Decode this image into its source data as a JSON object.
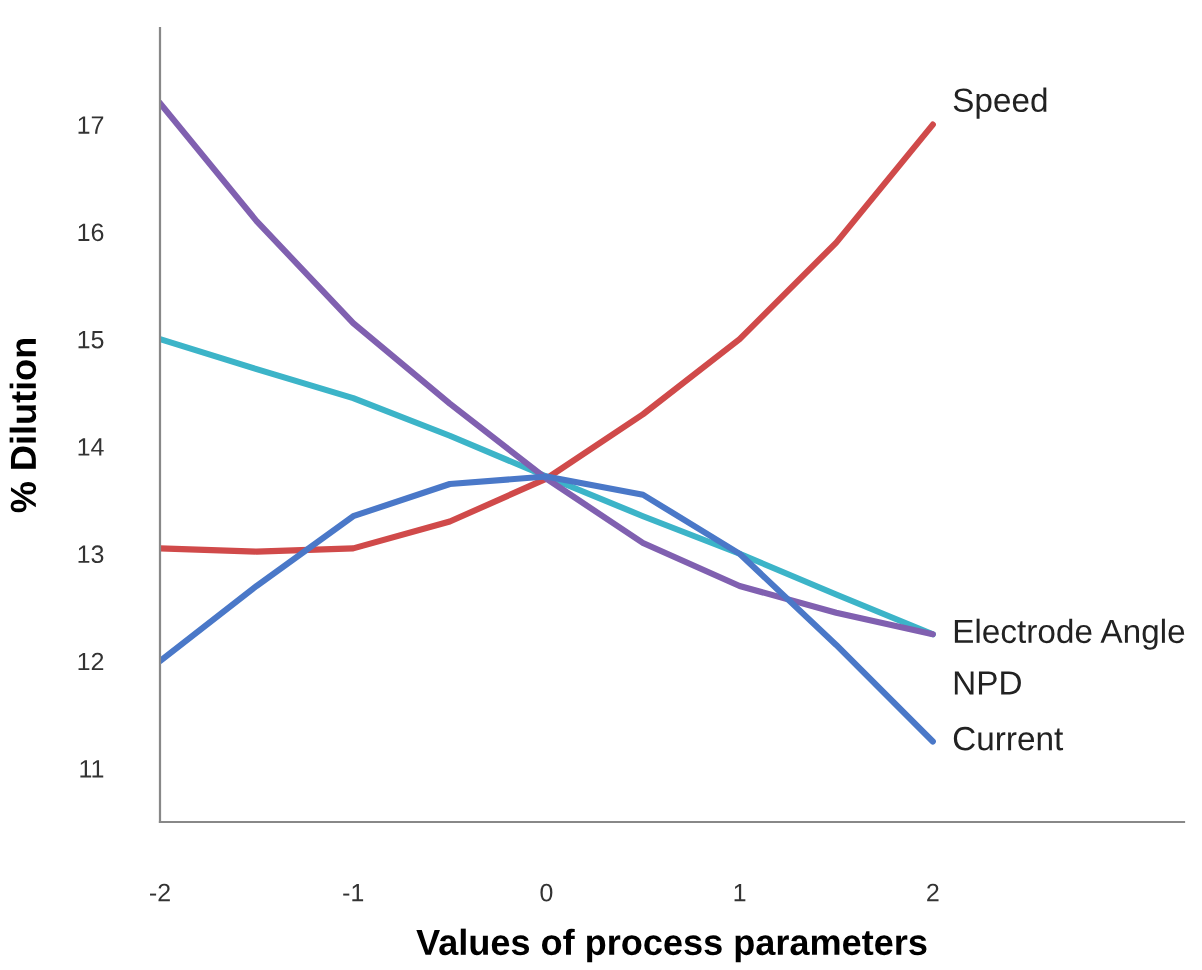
{
  "chart_data": {
    "type": "line",
    "xlabel": "Values of process parameters",
    "ylabel": "% Dilution",
    "x": [
      -2,
      -1.5,
      -1,
      -0.5,
      0,
      0.5,
      1,
      1.5,
      2
    ],
    "xlim": [
      -2,
      3.3
    ],
    "xticks": [
      -2,
      -1,
      0,
      1,
      2
    ],
    "ylim": [
      10.5,
      17.9
    ],
    "yticks": [
      11,
      12,
      13,
      14,
      15,
      16,
      17
    ],
    "grid": false,
    "legend": false,
    "marker": "none",
    "line_style": "solid",
    "series": [
      {
        "name": "Speed",
        "color": "#d04a4a",
        "values": [
          13.05,
          13.02,
          13.05,
          13.3,
          13.7,
          14.3,
          15.0,
          15.9,
          17.0
        ]
      },
      {
        "name": "Electrode Angle",
        "color": "#3cb4c8",
        "values": [
          15.0,
          14.72,
          14.45,
          14.1,
          13.72,
          13.35,
          13.0,
          12.62,
          12.25
        ]
      },
      {
        "name": "NPD",
        "color": "#8060b0",
        "values": [
          17.2,
          16.1,
          15.15,
          14.4,
          13.7,
          13.1,
          12.7,
          12.45,
          12.25
        ]
      },
      {
        "name": "Current",
        "color": "#4a78c8",
        "values": [
          12.0,
          12.7,
          13.35,
          13.65,
          13.72,
          13.55,
          13.0,
          12.15,
          11.25
        ]
      }
    ]
  }
}
